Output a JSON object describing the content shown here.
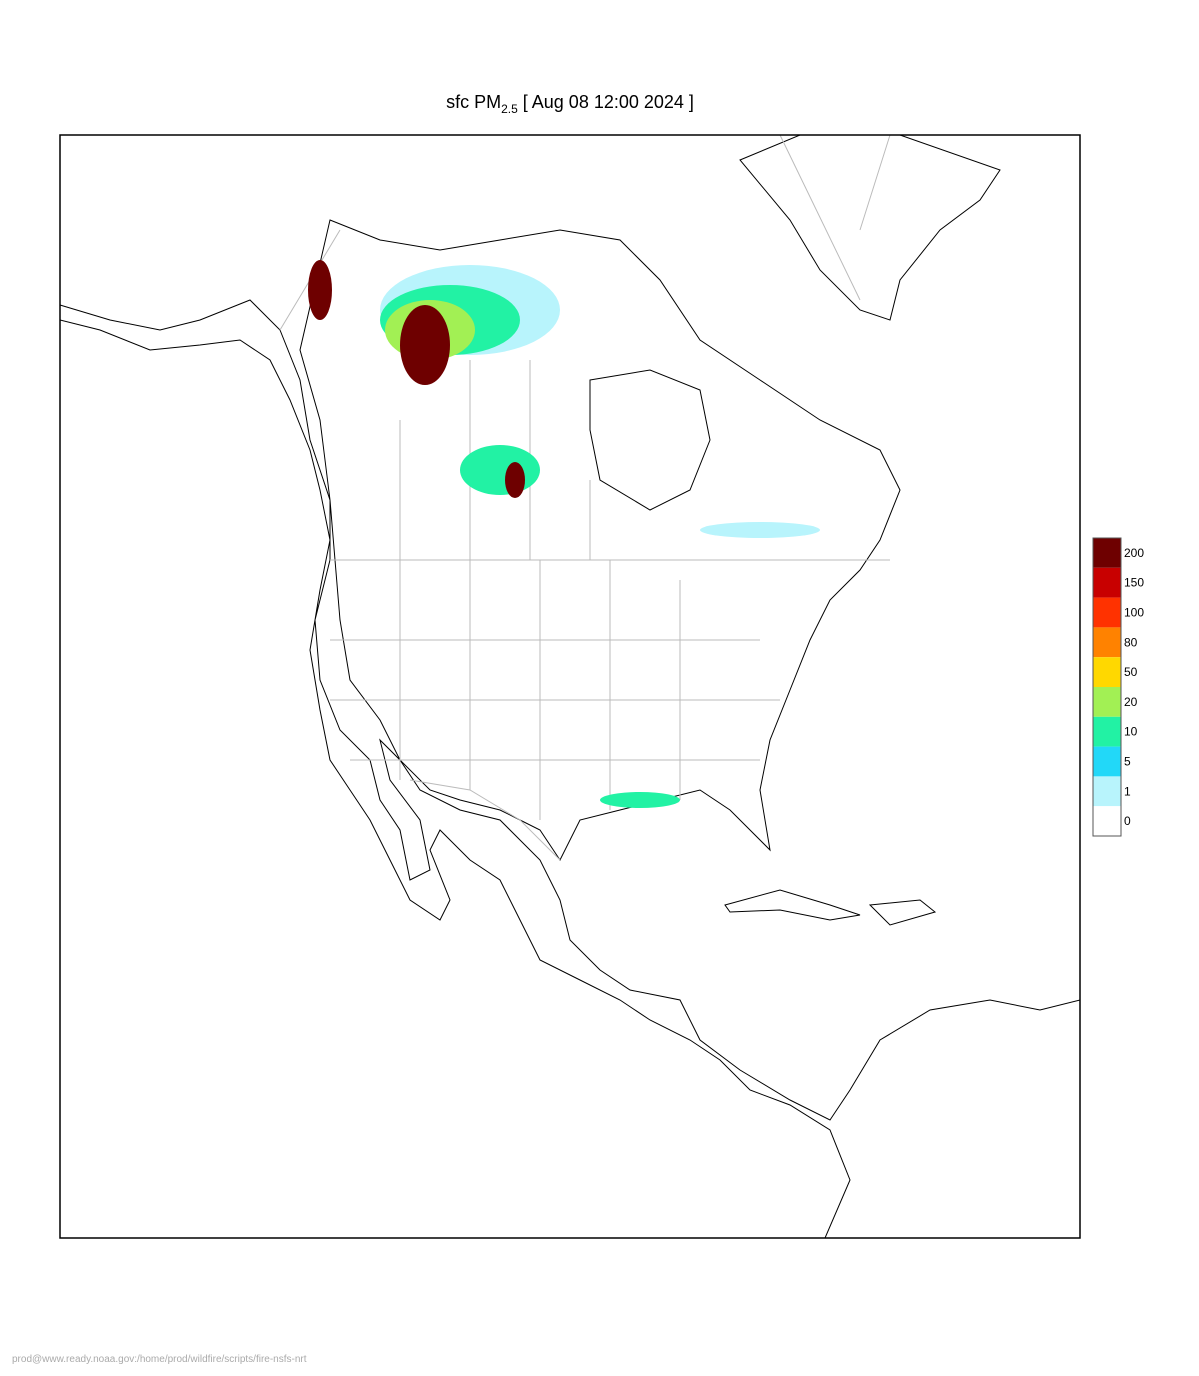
{
  "title": {
    "prefix": "sfc PM",
    "subscript": "2.5",
    "suffix": "[ Aug 08 12:00 2024 ]"
  },
  "legend": {
    "levels": [
      {
        "value": 200,
        "color": "#6e0000"
      },
      {
        "value": 150,
        "color": "#c80000"
      },
      {
        "value": 100,
        "color": "#ff3200"
      },
      {
        "value": 80,
        "color": "#ff8200"
      },
      {
        "value": 50,
        "color": "#ffd800"
      },
      {
        "value": 20,
        "color": "#a2f054"
      },
      {
        "value": 10,
        "color": "#22f2a4"
      },
      {
        "value": 5,
        "color": "#22d8f8"
      },
      {
        "value": 1,
        "color": "#b8f4fc"
      },
      {
        "value": 0,
        "color": "#ffffff"
      }
    ]
  },
  "footer": "prod@www.ready.noaa.gov:/home/prod/wildfire/scripts/fire-nsfs-nrt"
}
